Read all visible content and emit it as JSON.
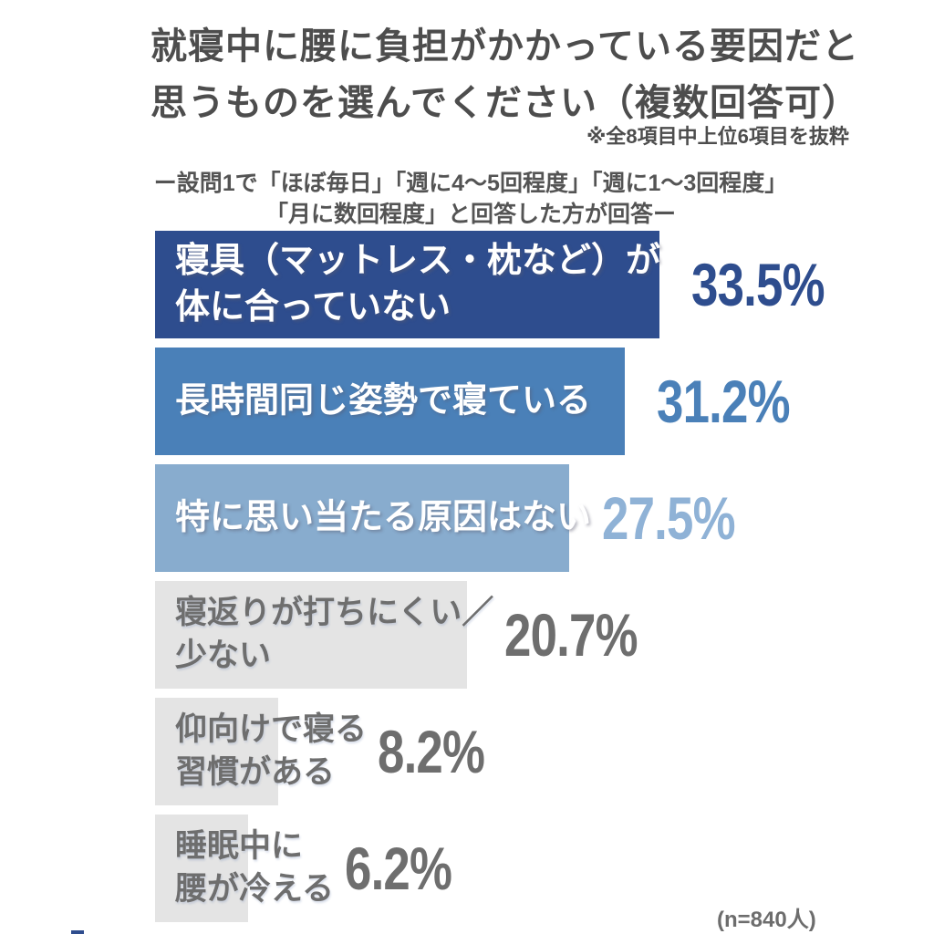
{
  "title": "就寝中に腰に負担がかかっている要因だと\n思うものを選んでください（複数回答可）",
  "note": "※全8項目中上位6項目を抜粋",
  "subtitle": "ー設問1で「ほぼ毎日」「週に4～5回程度」「週に1～3回程度」\n「月に数回程度」と回答した方が回答ー",
  "footer": {
    "sample_size": "(n=840人)"
  },
  "colors": {
    "dark_blue": "#2e4d8e",
    "medium_blue": "#4a80b8",
    "light_blue": "#88acce",
    "gray_bar": "#e4e4e4",
    "gray_text": "#6e6e6e",
    "title_text": "#4d4d4d"
  },
  "chart_data": {
    "type": "bar",
    "orientation": "horizontal",
    "unit": "%",
    "xlim": [
      0,
      35
    ],
    "grid": false,
    "legend": "none",
    "title": "就寝中に腰に負担がかかっている要因だと思うものを選んでください（複数回答可）",
    "categories": [
      "寝具（マットレス・枕など）が体に合っていない",
      "長時間同じ姿勢で寝ている",
      "特に思い当たる原因はない",
      "寝返りが打ちにくい／少ない",
      "仰向けで寝る習慣がある",
      "睡眠中に腰が冷える"
    ],
    "values": [
      33.5,
      31.2,
      27.5,
      20.7,
      8.2,
      6.2
    ],
    "items": [
      {
        "label": "寝具（マットレス・枕など）が\n体に合っていない",
        "value": 33.5,
        "display_value": "33.5%",
        "bar_color": "#2e4d8e",
        "label_inside": true,
        "label_color": "#ffffff",
        "value_color": "#2e4d8e"
      },
      {
        "label": "長時間同じ姿勢で寝ている",
        "value": 31.2,
        "display_value": "31.2%",
        "bar_color": "#4a80b8",
        "label_inside": true,
        "label_color": "#ffffff",
        "value_color": "#4a80b8"
      },
      {
        "label": "特に思い当たる原因はない",
        "value": 27.5,
        "display_value": "27.5%",
        "bar_color": "#88acce",
        "label_inside": true,
        "label_color": "#ffffff",
        "value_color": "#8fb2d6"
      },
      {
        "label": "寝返りが打ちにくい／\n少ない",
        "value": 20.7,
        "display_value": "20.7%",
        "bar_color": "#e4e4e4",
        "label_inside": false,
        "label_color": "#6e6e6e",
        "value_color": "#6e6e6e"
      },
      {
        "label": "仰向けで寝る\n習慣がある",
        "value": 8.2,
        "display_value": "8.2%",
        "bar_color": "#e4e4e4",
        "label_inside": false,
        "label_color": "#6e6e6e",
        "value_color": "#6e6e6e"
      },
      {
        "label": "睡眠中に\n腰が冷える",
        "value": 6.2,
        "display_value": "6.2%",
        "bar_color": "#e4e4e4",
        "label_inside": false,
        "label_color": "#6e6e6e",
        "value_color": "#6e6e6e"
      }
    ]
  }
}
